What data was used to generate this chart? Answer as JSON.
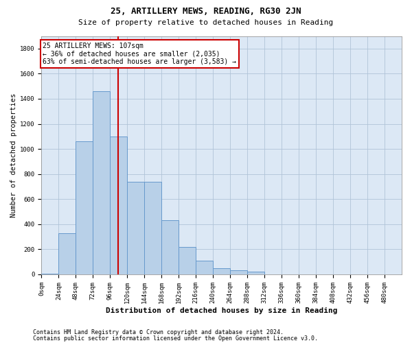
{
  "title": "25, ARTILLERY MEWS, READING, RG30 2JN",
  "subtitle": "Size of property relative to detached houses in Reading",
  "xlabel": "Distribution of detached houses by size in Reading",
  "ylabel": "Number of detached properties",
  "footnote1": "Contains HM Land Registry data © Crown copyright and database right 2024.",
  "footnote2": "Contains public sector information licensed under the Open Government Licence v3.0.",
  "bar_labels": [
    "0sqm",
    "24sqm",
    "48sqm",
    "72sqm",
    "96sqm",
    "120sqm",
    "144sqm",
    "168sqm",
    "192sqm",
    "216sqm",
    "240sqm",
    "264sqm",
    "288sqm",
    "312sqm",
    "336sqm",
    "360sqm",
    "384sqm",
    "408sqm",
    "432sqm",
    "456sqm",
    "480sqm"
  ],
  "bar_values": [
    5,
    330,
    1060,
    1460,
    1100,
    740,
    740,
    430,
    220,
    110,
    50,
    35,
    20,
    0,
    0,
    0,
    0,
    0,
    0,
    0,
    0
  ],
  "bar_color": "#b8d0e8",
  "bar_edge_color": "#6699cc",
  "annotation_line1": "25 ARTILLERY MEWS: 107sqm",
  "annotation_line2": "← 36% of detached houses are smaller (2,035)",
  "annotation_line3": "63% of semi-detached houses are larger (3,583) →",
  "vline_x": 107,
  "vline_color": "#cc0000",
  "annotation_box_color": "#ffffff",
  "annotation_box_edge": "#cc0000",
  "ylim": [
    0,
    1900
  ],
  "bin_width": 24,
  "background_color": "#ffffff",
  "plot_bg_color": "#dce8f5",
  "grid_color": "#b0c4d8",
  "title_fontsize": 9,
  "subtitle_fontsize": 8,
  "ylabel_fontsize": 7.5,
  "xlabel_fontsize": 8,
  "tick_fontsize": 6.5,
  "footnote_fontsize": 6,
  "annotation_fontsize": 7
}
